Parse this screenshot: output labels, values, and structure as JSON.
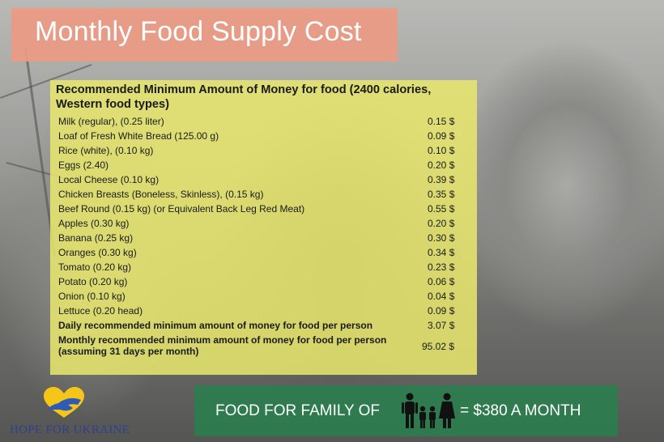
{
  "title": "Monthly Food Supply Cost",
  "panel": {
    "heading": "Recommended Minimum Amount of Money for food (2400 calories, Western food types)",
    "items": [
      {
        "label": "Milk (regular), (0.25 liter)",
        "value": "0.15 $"
      },
      {
        "label": "Loaf of Fresh White Bread (125.00 g)",
        "value": "0.09 $"
      },
      {
        "label": "Rice (white), (0.10 kg)",
        "value": "0.10 $"
      },
      {
        "label": "Eggs (2.40)",
        "value": "0.20 $"
      },
      {
        "label": "Local Cheese (0.10 kg)",
        "value": "0.39 $"
      },
      {
        "label": "Chicken Breasts (Boneless, Skinless), (0.15 kg)",
        "value": "0.35 $"
      },
      {
        "label": "Beef Round (0.15 kg) (or Equivalent Back Leg Red Meat)",
        "value": "0.55 $"
      },
      {
        "label": "Apples (0.30 kg)",
        "value": "0.20 $"
      },
      {
        "label": "Banana (0.25 kg)",
        "value": "0.30 $"
      },
      {
        "label": "Oranges (0.30 kg)",
        "value": "0.34 $"
      },
      {
        "label": "Tomato (0.20 kg)",
        "value": "0.23 $"
      },
      {
        "label": "Potato (0.20 kg)",
        "value": "0.06 $"
      },
      {
        "label": "Onion (0.10 kg)",
        "value": "0.04 $"
      },
      {
        "label": "Lettuce (0.20 head)",
        "value": "0.09 $"
      }
    ],
    "daily": {
      "label": "Daily recommended minimum amount of money for food per person",
      "value": "3.07 $"
    },
    "monthly": {
      "label": "Monthly recommended minimum amount of money for food per person (assuming 31 days per month)",
      "value": "95.02 $"
    }
  },
  "logo": {
    "text": "HOPE FOR UKRAINE",
    "icon": "hands-heart-icon",
    "colors": {
      "yellow": "#f5c518",
      "blue": "#2f5bb7"
    }
  },
  "banner": {
    "prefix": "FOOD FOR FAMILY OF",
    "icon": "family-icon",
    "suffix": "= $380 A MONTH",
    "color": "#2a7d4e"
  },
  "colors": {
    "title_bg": "#eb9a84",
    "panel_bg": "#e8e86e"
  }
}
